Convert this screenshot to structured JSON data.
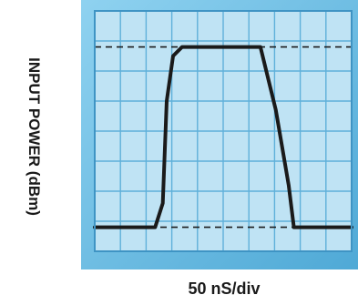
{
  "chart_data": {
    "type": "line",
    "title": "",
    "xlabel": "50 nS/div",
    "ylabel": "INPUT POWER (dBm)",
    "grid": true,
    "xlim": [
      0,
      10
    ],
    "ylim": [
      0,
      8
    ],
    "x_divisions": 10,
    "y_divisions": 8,
    "series": [
      {
        "x": [
          0,
          2.35,
          2.65,
          2.8,
          3.05,
          3.4,
          6.45,
          7.05,
          7.55,
          7.75,
          10
        ],
        "y": [
          0.8,
          0.8,
          1.6,
          5.0,
          6.5,
          6.8,
          6.8,
          4.7,
          2.2,
          0.8,
          0.8
        ]
      }
    ],
    "reference_lines": [
      {
        "style": "dashed",
        "y": 6.8
      },
      {
        "style": "dashed",
        "y": 0.8
      }
    ],
    "colors": {
      "screen_background": "#bfe3f4",
      "grid": "#5fb0da",
      "bezel": "#73c4ea",
      "trace": "#1a1a1a",
      "reference": "#1a1a1a"
    }
  }
}
